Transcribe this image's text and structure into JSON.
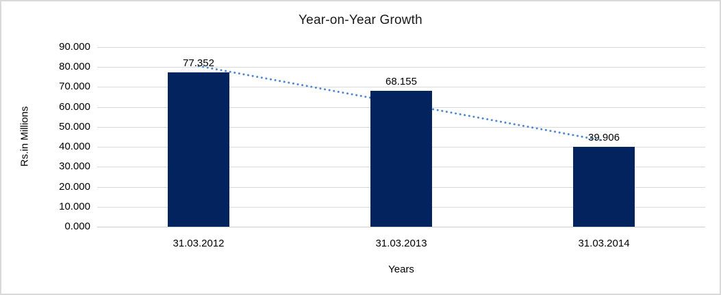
{
  "chart_data": {
    "type": "bar",
    "title": "Year-on-Year Growth",
    "categories": [
      "31.03.2012",
      "31.03.2013",
      "31.03.2014"
    ],
    "values": [
      77.352,
      68.155,
      39.906
    ],
    "data_labels": [
      "77.352",
      "68.155",
      "39.906"
    ],
    "xlabel": "Years",
    "ylabel": "Rs.in Millions",
    "ylim": [
      0,
      90
    ],
    "ytick_step": 10,
    "ytick_labels": [
      "0.000",
      "10.000",
      "20.000",
      "30.000",
      "40.000",
      "50.000",
      "60.000",
      "70.000",
      "80.000",
      "90.000"
    ],
    "grid": true,
    "legend": "none",
    "colors": {
      "bar": "#03235f",
      "gridline": "#d9d9d9",
      "axis_line": "#cfcfcf",
      "text": "#000000",
      "trendline": "#4e87d3"
    },
    "trendline": {
      "type": "linear",
      "style": "dotted",
      "color": "#4e87d3",
      "start_value": 80.53,
      "end_value": 43.08
    }
  }
}
